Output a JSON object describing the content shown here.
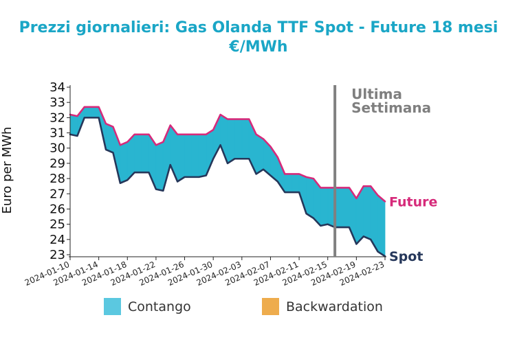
{
  "chart_data": {
    "type": "area",
    "title": "Prezzi giornalieri: Gas Olanda TTF Spot - Future 18 mesi",
    "subtitle": "€/MWh",
    "ylabel": "Euro per MWh",
    "xlabel": "",
    "ylim": [
      23,
      34
    ],
    "yticks": [
      23,
      24,
      25,
      26,
      27,
      28,
      29,
      30,
      31,
      32,
      33,
      34
    ],
    "x_start": "2024-01-10",
    "x_end": "2024-02-23",
    "xticks": [
      "2024-01-10",
      "2024-01-14",
      "2024-01-18",
      "2024-01-22",
      "2024-01-26",
      "2024-01-30",
      "2024-02-03",
      "2024-02-07",
      "2024-02-11",
      "2024-02-15",
      "2024-02-19",
      "2024-02-23"
    ],
    "dates": [
      "2024-01-10",
      "2024-01-11",
      "2024-01-12",
      "2024-01-13",
      "2024-01-14",
      "2024-01-15",
      "2024-01-16",
      "2024-01-17",
      "2024-01-18",
      "2024-01-19",
      "2024-01-20",
      "2024-01-21",
      "2024-01-22",
      "2024-01-23",
      "2024-01-24",
      "2024-01-25",
      "2024-01-26",
      "2024-01-27",
      "2024-01-28",
      "2024-01-29",
      "2024-01-30",
      "2024-01-31",
      "2024-02-01",
      "2024-02-02",
      "2024-02-03",
      "2024-02-04",
      "2024-02-05",
      "2024-02-06",
      "2024-02-07",
      "2024-02-08",
      "2024-02-09",
      "2024-02-10",
      "2024-02-11",
      "2024-02-12",
      "2024-02-13",
      "2024-02-14",
      "2024-02-15",
      "2024-02-16",
      "2024-02-17",
      "2024-02-18",
      "2024-02-19",
      "2024-02-20",
      "2024-02-21",
      "2024-02-22",
      "2024-02-23"
    ],
    "series": [
      {
        "name": "Future",
        "color": "#d62a7a",
        "values": [
          32.2,
          32.1,
          32.7,
          32.7,
          32.7,
          31.6,
          31.4,
          30.2,
          30.4,
          30.9,
          30.9,
          30.9,
          30.2,
          30.4,
          31.5,
          30.9,
          30.9,
          30.9,
          30.9,
          30.9,
          31.2,
          32.2,
          31.9,
          31.9,
          31.9,
          31.9,
          30.9,
          30.6,
          30.1,
          29.4,
          28.3,
          28.3,
          28.3,
          28.1,
          28.0,
          27.4,
          27.4,
          27.4,
          27.4,
          27.4,
          26.7,
          27.5,
          27.5,
          26.9,
          26.5
        ]
      },
      {
        "name": "Spot",
        "color": "#25375a",
        "values": [
          30.9,
          30.8,
          32.0,
          32.0,
          32.0,
          29.9,
          29.7,
          27.7,
          27.9,
          28.4,
          28.4,
          28.4,
          27.3,
          27.2,
          28.9,
          27.8,
          28.1,
          28.1,
          28.1,
          28.2,
          29.3,
          30.2,
          29.0,
          29.3,
          29.3,
          29.3,
          28.3,
          28.6,
          28.2,
          27.8,
          27.1,
          27.1,
          27.1,
          25.7,
          25.4,
          24.9,
          25.0,
          24.8,
          24.8,
          24.8,
          23.7,
          24.2,
          24.0,
          23.2,
          22.9
        ]
      }
    ],
    "fill_colors": {
      "contango": "#29b5d0",
      "backwardation": "#f0a848"
    },
    "legend": {
      "position": "bottom",
      "items": [
        {
          "label": "Contango",
          "color": "#5bc8e0"
        },
        {
          "label": "Backwardation",
          "color": "#eeac4d"
        }
      ]
    },
    "annotation": {
      "text_line1": "Ultima",
      "text_line2": "Settimana",
      "date": "2024-02-16",
      "color": "#808080"
    },
    "grid": false
  }
}
